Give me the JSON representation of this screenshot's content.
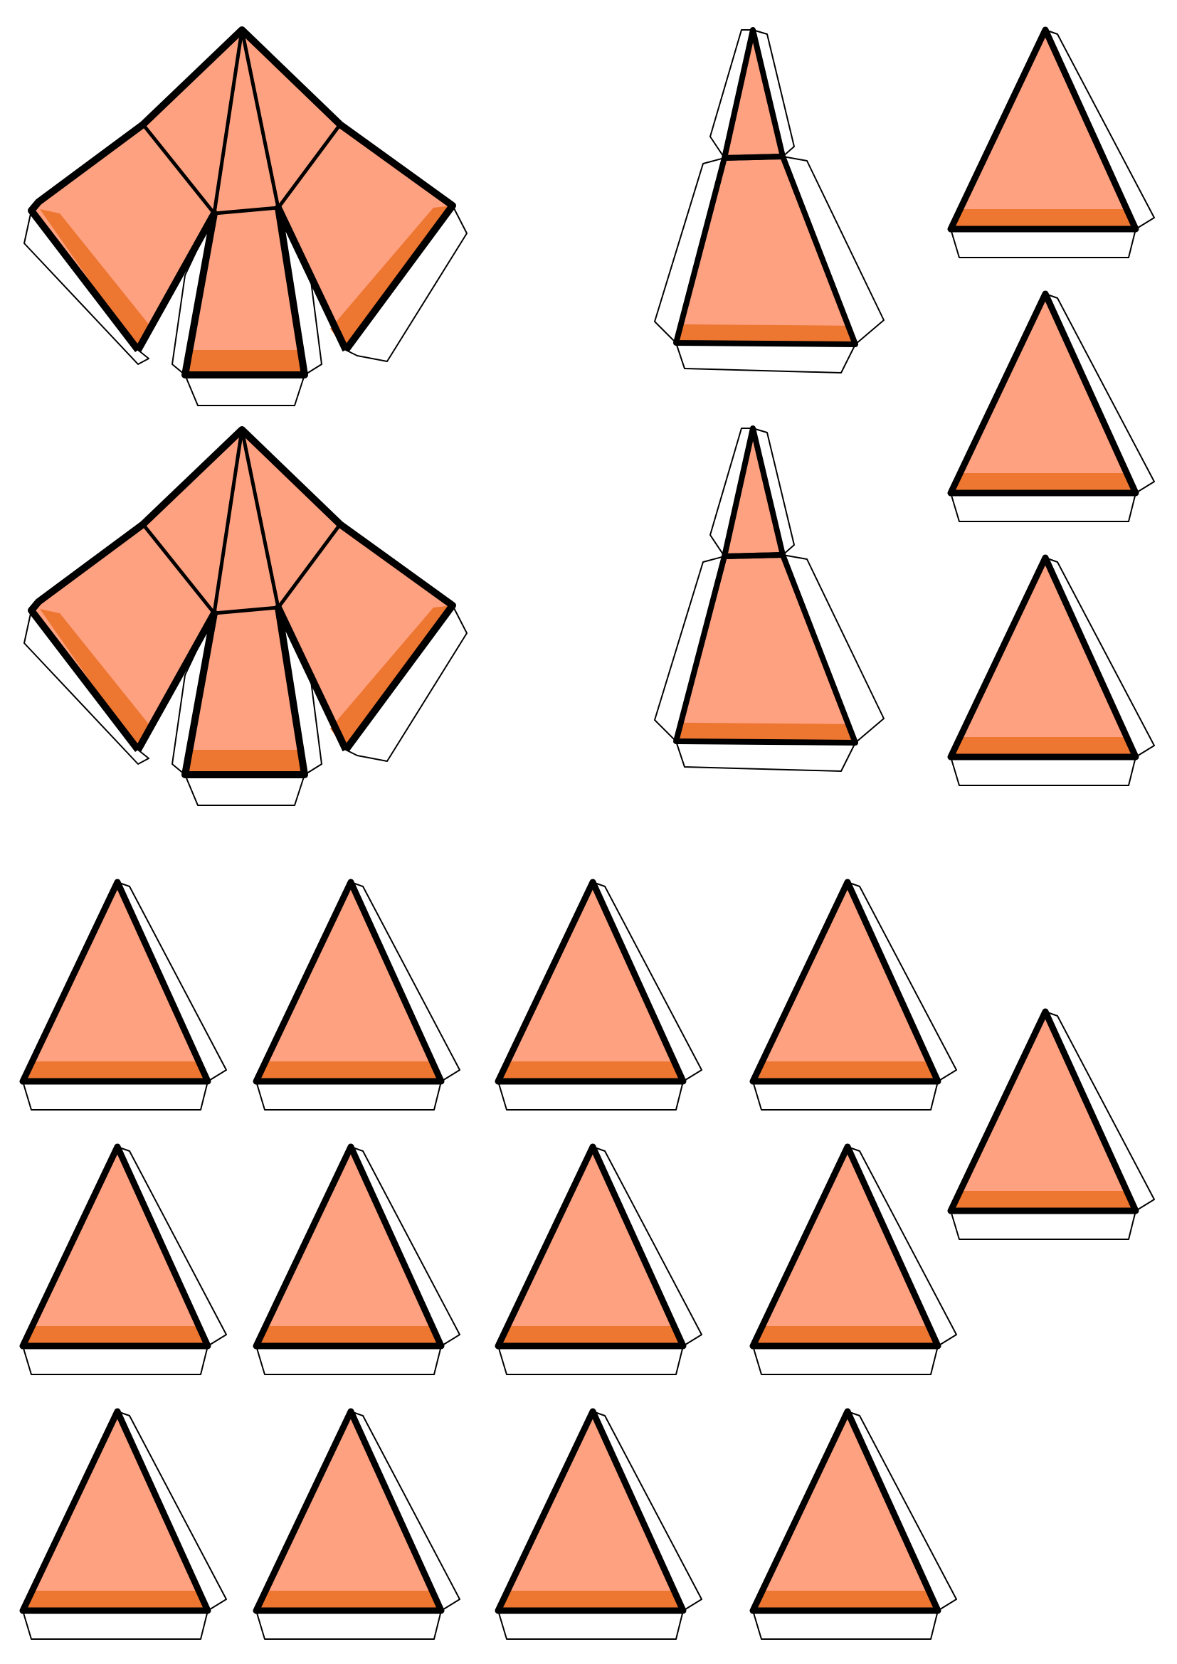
{
  "sheet": {
    "background_color": "#ffffff",
    "colors": {
      "face": "#fea181",
      "band": "#ed7630",
      "outline": "#000000",
      "glue_tab_fill": "#ffffff",
      "glue_tab_stroke": "#000000"
    },
    "nets": [
      {
        "kind": "pyramid-net-five-face",
        "count": 2
      },
      {
        "kind": "tall-two-face-strip",
        "count": 2
      },
      {
        "kind": "single-triangle-with-tabs",
        "count": 16
      }
    ]
  }
}
